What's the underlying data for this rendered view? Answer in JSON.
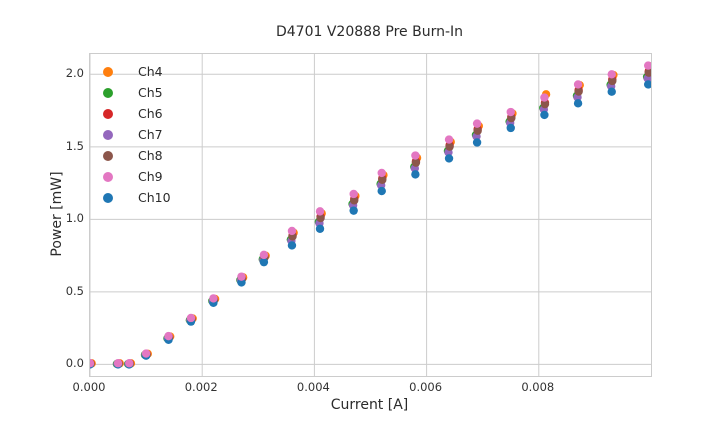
{
  "chart_data": {
    "type": "scatter",
    "title": "D4701 V20888 Pre Burn-In",
    "xlabel": "Current [A]",
    "ylabel": "Power [mW]",
    "xlim": [
      0.0,
      0.01
    ],
    "ylim": [
      -0.08,
      2.14
    ],
    "grid": true,
    "legend_position": "upper left",
    "x_tick_values": [
      0.0,
      0.002,
      0.004,
      0.006,
      0.008
    ],
    "x_tick_labels": [
      "0.000",
      "0.002",
      "0.004",
      "0.006",
      "0.008"
    ],
    "y_tick_values": [
      0.0,
      0.5,
      1.0,
      1.5,
      2.0
    ],
    "y_tick_labels": [
      "0.0",
      "0.5",
      "1.0",
      "1.5",
      "2.0"
    ],
    "x": [
      0.0,
      0.0005,
      0.0007,
      0.001,
      0.0014,
      0.0018,
      0.0022,
      0.0027,
      0.0031,
      0.0036,
      0.0041,
      0.0047,
      0.0052,
      0.0058,
      0.0064,
      0.0069,
      0.0075,
      0.0081,
      0.0087,
      0.0093,
      0.00995
    ],
    "marker": "circle",
    "draw_order": [
      "Ch4",
      "Ch5",
      "Ch6",
      "Ch7",
      "Ch8",
      "Ch10",
      "Ch9"
    ],
    "series": [
      {
        "name": "Ch4",
        "color": "#ff7f0e",
        "x_offset": 3e-05,
        "values": [
          0.007,
          0.007,
          0.007,
          0.073,
          0.192,
          0.317,
          0.451,
          0.6,
          0.749,
          0.908,
          1.041,
          1.161,
          1.305,
          1.424,
          1.534,
          1.644,
          1.73,
          1.862,
          1.925,
          1.995,
          2.055
        ]
      },
      {
        "name": "Ch5",
        "color": "#2ca02c",
        "x_offset": -2e-05,
        "values": [
          0.003,
          0.003,
          0.003,
          0.066,
          0.18,
          0.305,
          0.437,
          0.581,
          0.725,
          0.86,
          0.983,
          1.106,
          1.245,
          1.362,
          1.472,
          1.582,
          1.674,
          1.768,
          1.852,
          1.928,
          1.982
        ]
      },
      {
        "name": "Ch6",
        "color": "#d62728",
        "x_offset": 1e-05,
        "values": [
          0.006,
          0.006,
          0.006,
          0.071,
          0.188,
          0.313,
          0.446,
          0.593,
          0.74,
          0.89,
          1.019,
          1.141,
          1.283,
          1.401,
          1.511,
          1.621,
          1.707,
          1.804,
          1.891,
          1.964,
          2.021
        ]
      },
      {
        "name": "Ch7",
        "color": "#9467bd",
        "x_offset": -1e-05,
        "values": [
          0.003,
          0.003,
          0.003,
          0.065,
          0.178,
          0.303,
          0.435,
          0.578,
          0.721,
          0.852,
          0.973,
          1.097,
          1.235,
          1.352,
          1.462,
          1.572,
          1.665,
          1.758,
          1.842,
          1.918,
          1.972
        ]
      },
      {
        "name": "Ch8",
        "color": "#8c564b",
        "x_offset": 1e-05,
        "values": [
          0.005,
          0.005,
          0.005,
          0.069,
          0.186,
          0.311,
          0.444,
          0.59,
          0.736,
          0.882,
          1.009,
          1.131,
          1.273,
          1.391,
          1.501,
          1.611,
          1.698,
          1.794,
          1.881,
          1.954,
          2.011
        ]
      },
      {
        "name": "Ch9",
        "color": "#e377c2",
        "x_offset": 0.0,
        "values": [
          0.008,
          0.008,
          0.008,
          0.075,
          0.195,
          0.32,
          0.455,
          0.605,
          0.755,
          0.92,
          1.055,
          1.175,
          1.32,
          1.44,
          1.55,
          1.66,
          1.74,
          1.84,
          1.93,
          2.0,
          2.06
        ]
      },
      {
        "name": "Ch10",
        "color": "#1f77b4",
        "x_offset": 0.0,
        "values": [
          0.0,
          0.0,
          0.0,
          0.06,
          0.17,
          0.295,
          0.425,
          0.565,
          0.705,
          0.82,
          0.935,
          1.06,
          1.195,
          1.31,
          1.42,
          1.53,
          1.63,
          1.72,
          1.8,
          1.88,
          1.93
        ]
      }
    ],
    "style": {
      "grid_color": "#cccccc",
      "spine_color": "#cccccc",
      "text_color": "#2b2b2b",
      "background": "#ffffff"
    }
  }
}
